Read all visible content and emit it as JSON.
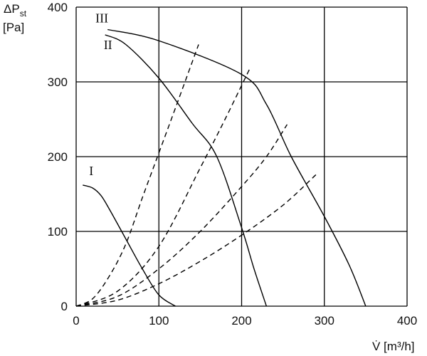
{
  "chart_data": {
    "type": "line",
    "ylabel_main": "ΔP",
    "ylabel_sub": "st",
    "yunit": "[Pa]",
    "xlabel": "V̇ [m³/h]",
    "xlim": [
      0,
      400
    ],
    "ylim": [
      0,
      400
    ],
    "xticks": [
      0,
      100,
      200,
      300,
      400
    ],
    "yticks": [
      0,
      100,
      200,
      300,
      400
    ],
    "grid": true,
    "series": [
      {
        "name": "I",
        "style": "solid",
        "x": [
          8,
          20,
          30,
          40,
          60,
          80,
          100,
          120
        ],
        "y": [
          162,
          158,
          148,
          130,
          90,
          50,
          15,
          0
        ]
      },
      {
        "name": "II",
        "style": "solid",
        "x": [
          35,
          60,
          100,
          140,
          170,
          200,
          215,
          230
        ],
        "y": [
          363,
          350,
          305,
          245,
          200,
          105,
          50,
          0
        ]
      },
      {
        "name": "III",
        "style": "solid",
        "x": [
          38,
          100,
          200,
          230,
          260,
          300,
          330,
          350
        ],
        "y": [
          370,
          355,
          310,
          270,
          200,
          120,
          55,
          0
        ]
      },
      {
        "style": "dashed",
        "x": [
          0,
          20,
          40,
          60,
          80,
          100,
          120,
          148
        ],
        "y": [
          0,
          10,
          40,
          83,
          145,
          205,
          265,
          350
        ]
      },
      {
        "style": "dashed",
        "x": [
          0,
          50,
          100,
          150,
          180,
          210
        ],
        "y": [
          0,
          20,
          80,
          185,
          250,
          318
        ]
      },
      {
        "style": "dashed",
        "x": [
          0,
          50,
          100,
          150,
          200,
          230,
          255
        ],
        "y": [
          0,
          13,
          50,
          100,
          160,
          200,
          243
        ]
      },
      {
        "style": "dashed",
        "x": [
          0,
          50,
          100,
          150,
          200,
          250,
          290
        ],
        "y": [
          0,
          8,
          30,
          60,
          95,
          135,
          176
        ]
      }
    ]
  }
}
